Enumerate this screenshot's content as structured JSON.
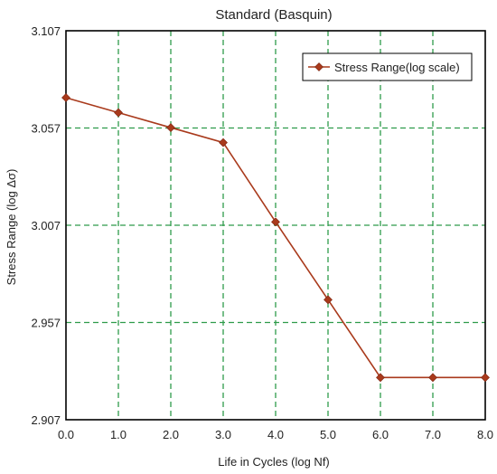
{
  "chart_data": {
    "type": "line",
    "title": "Standard (Basquin)",
    "xlabel": "Life in Cycles (log Nf)",
    "ylabel": "Stress Range (log Δσ)",
    "xlim": [
      0,
      8
    ],
    "ylim": [
      2.907,
      3.107
    ],
    "x_ticks": [
      "0.0",
      "1.0",
      "2.0",
      "3.0",
      "4.0",
      "5.0",
      "6.0",
      "7.0",
      "8.0"
    ],
    "y_ticks": [
      "2.907",
      "2.957",
      "3.007",
      "3.057",
      "3.107"
    ],
    "grid": true,
    "legend_position": "top-right",
    "series": [
      {
        "name": "Stress Range(log scale)",
        "color": "#a93a1c",
        "marker": "diamond",
        "x": [
          0,
          1,
          2,
          3,
          4,
          5,
          6,
          7,
          8
        ],
        "y": [
          3.0726,
          3.0649,
          3.0572,
          3.0495,
          3.0087,
          2.9687,
          2.9287,
          2.9287,
          2.9287
        ]
      }
    ]
  },
  "colors": {
    "grid": "#2e9b4a",
    "frame": "#000000",
    "series": "#a93a1c"
  }
}
